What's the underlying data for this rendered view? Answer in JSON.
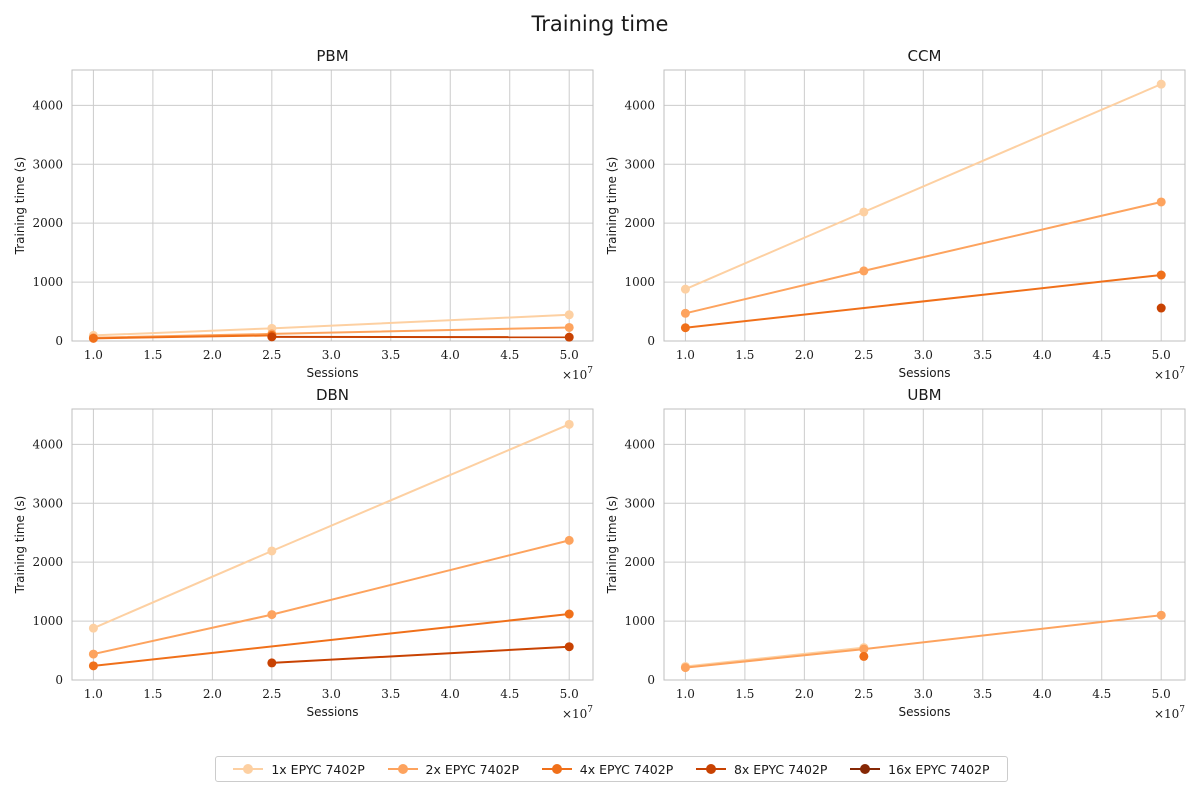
{
  "figure_title": "Training time",
  "legend": [
    {
      "label": "1x EPYC 7402P",
      "color": "#fdd0a2"
    },
    {
      "label": "2x EPYC 7402P",
      "color": "#fda35e"
    },
    {
      "label": "4x EPYC 7402P",
      "color": "#f0701a"
    },
    {
      "label": "8x EPYC 7402P",
      "color": "#c84202"
    },
    {
      "label": "16x EPYC 7402P",
      "color": "#862805"
    }
  ],
  "chart_data": [
    {
      "type": "line",
      "title": "PBM",
      "xlabel": "Sessions",
      "ylabel": "Training time (s)",
      "x_offset_label": "×10^7",
      "xlim": [
        0.82,
        5.2
      ],
      "ylim": [
        0,
        4600
      ],
      "xticks": [
        1.0,
        1.5,
        2.0,
        2.5,
        3.0,
        3.5,
        4.0,
        4.5,
        5.0
      ],
      "yticks": [
        0,
        1000,
        2000,
        3000,
        4000
      ],
      "grid": true,
      "series": [
        {
          "name": "1x EPYC 7402P",
          "x": [
            1.0,
            2.5,
            5.0
          ],
          "y": [
            95,
            215,
            445
          ]
        },
        {
          "name": "2x EPYC 7402P",
          "x": [
            1.0,
            2.5,
            5.0
          ],
          "y": [
            55,
            120,
            230
          ]
        },
        {
          "name": "4x EPYC 7402P",
          "x": [
            1.0,
            2.5
          ],
          "y": [
            45,
            95
          ]
        },
        {
          "name": "8x EPYC 7402P",
          "x": [
            2.5,
            5.0
          ],
          "y": [
            70,
            65
          ]
        },
        {
          "name": "16x EPYC 7402P",
          "x": [],
          "y": []
        }
      ]
    },
    {
      "type": "line",
      "title": "CCM",
      "xlabel": "Sessions",
      "ylabel": "Training time (s)",
      "x_offset_label": "×10^7",
      "xlim": [
        0.82,
        5.2
      ],
      "ylim": [
        0,
        4600
      ],
      "xticks": [
        1.0,
        1.5,
        2.0,
        2.5,
        3.0,
        3.5,
        4.0,
        4.5,
        5.0
      ],
      "yticks": [
        0,
        1000,
        2000,
        3000,
        4000
      ],
      "grid": true,
      "series": [
        {
          "name": "1x EPYC 7402P",
          "x": [
            1.0,
            2.5,
            5.0
          ],
          "y": [
            880,
            2190,
            4360
          ]
        },
        {
          "name": "2x EPYC 7402P",
          "x": [
            1.0,
            2.5,
            5.0
          ],
          "y": [
            470,
            1190,
            2360
          ]
        },
        {
          "name": "4x EPYC 7402P",
          "x": [
            1.0,
            5.0
          ],
          "y": [
            225,
            1120
          ]
        },
        {
          "name": "8x EPYC 7402P",
          "x": [
            5.0
          ],
          "y": [
            560
          ]
        },
        {
          "name": "16x EPYC 7402P",
          "x": [],
          "y": []
        }
      ]
    },
    {
      "type": "line",
      "title": "DBN",
      "xlabel": "Sessions",
      "ylabel": "Training time (s)",
      "x_offset_label": "×10^7",
      "xlim": [
        0.82,
        5.2
      ],
      "ylim": [
        0,
        4600
      ],
      "xticks": [
        1.0,
        1.5,
        2.0,
        2.5,
        3.0,
        3.5,
        4.0,
        4.5,
        5.0
      ],
      "yticks": [
        0,
        1000,
        2000,
        3000,
        4000
      ],
      "grid": true,
      "series": [
        {
          "name": "1x EPYC 7402P",
          "x": [
            1.0,
            2.5,
            5.0
          ],
          "y": [
            880,
            2190,
            4340
          ]
        },
        {
          "name": "2x EPYC 7402P",
          "x": [
            1.0,
            2.5,
            5.0
          ],
          "y": [
            440,
            1110,
            2370
          ]
        },
        {
          "name": "4x EPYC 7402P",
          "x": [
            1.0,
            5.0
          ],
          "y": [
            240,
            1120
          ]
        },
        {
          "name": "8x EPYC 7402P",
          "x": [
            2.5,
            5.0
          ],
          "y": [
            290,
            565
          ]
        },
        {
          "name": "16x EPYC 7402P",
          "x": [],
          "y": []
        }
      ]
    },
    {
      "type": "line",
      "title": "UBM",
      "xlabel": "Sessions",
      "ylabel": "Training time (s)",
      "x_offset_label": "×10^7",
      "xlim": [
        0.82,
        5.2
      ],
      "ylim": [
        0,
        4600
      ],
      "xticks": [
        1.0,
        1.5,
        2.0,
        2.5,
        3.0,
        3.5,
        4.0,
        4.5,
        5.0
      ],
      "yticks": [
        0,
        1000,
        2000,
        3000,
        4000
      ],
      "grid": true,
      "series": [
        {
          "name": "1x EPYC 7402P",
          "x": [
            1.0,
            2.5
          ],
          "y": [
            230,
            550
          ]
        },
        {
          "name": "2x EPYC 7402P",
          "x": [
            1.0,
            2.5,
            5.0
          ],
          "y": [
            210,
            525,
            1100
          ]
        },
        {
          "name": "4x EPYC 7402P",
          "x": [
            2.5
          ],
          "y": [
            400
          ]
        },
        {
          "name": "8x EPYC 7402P",
          "x": [],
          "y": []
        },
        {
          "name": "16x EPYC 7402P",
          "x": [],
          "y": []
        }
      ]
    }
  ]
}
